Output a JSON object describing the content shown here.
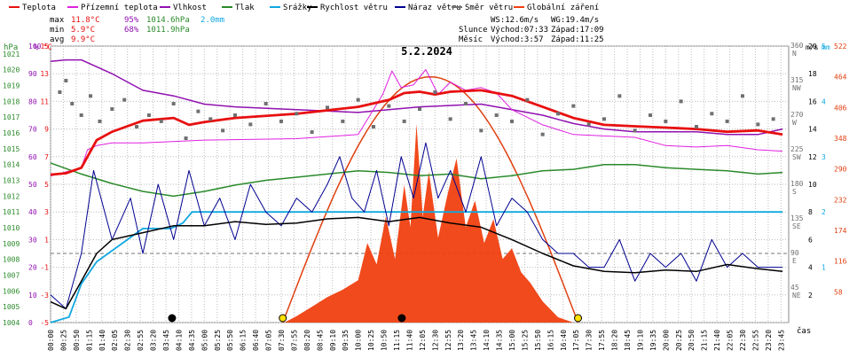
{
  "chart_data": {
    "type": "line",
    "title": "5.2.2024",
    "legend": [
      {
        "label": "Teplota",
        "color": "#e81010"
      },
      {
        "label": "Přízemní teplota",
        "color": "#e020e0"
      },
      {
        "label": "Vlhkost",
        "color": "#9010b0"
      },
      {
        "label": "Tlak",
        "color": "#2a8a2a"
      },
      {
        "label": "Srážky",
        "color": "#10a8e0"
      },
      {
        "label": "Rychlost větru",
        "color": "#000000"
      },
      {
        "label": "Náraz větru",
        "color": "#000090"
      },
      {
        "label": "Směr větru",
        "color": "#707070"
      },
      {
        "label": "Globální záření",
        "color": "#f04010"
      }
    ],
    "stats": [
      {
        "label": "max",
        "temp": "11.8°C",
        "hum": "95%",
        "press": "1014.6hPa",
        "rain": "2.0mm"
      },
      {
        "label": "min",
        "temp": "5.9°C",
        "hum": "68%",
        "press": "1011.9hPa",
        "rain": ""
      },
      {
        "label": "avg",
        "temp": "9.9°C",
        "hum": "",
        "press": "",
        "rain": ""
      }
    ],
    "info": {
      "ws": "WS:12.6m/s",
      "wg": "WG:19.4m/s",
      "sun_label": "Slunce",
      "sun_rise": "Východ:07:33",
      "sun_set": "Západ:17:09",
      "moon_label": "Měsíc",
      "moon_rise": "Východ:3:57",
      "moon_set": "Západ:11:25"
    },
    "x_axis_label": "čas",
    "x_ticks": [
      "00:00",
      "00:25",
      "00:50",
      "01:15",
      "01:40",
      "02:05",
      "02:30",
      "02:55",
      "03:20",
      "03:45",
      "04:10",
      "04:35",
      "05:00",
      "05:25",
      "05:50",
      "06:15",
      "06:40",
      "07:05",
      "07:30",
      "07:55",
      "08:20",
      "08:45",
      "09:10",
      "09:35",
      "10:00",
      "10:25",
      "10:50",
      "11:15",
      "11:40",
      "12:05",
      "12:30",
      "12:55",
      "13:20",
      "13:45",
      "14:10",
      "14:35",
      "15:00",
      "15:25",
      "15:50",
      "16:15",
      "16:40",
      "17:05",
      "17:30",
      "17:55",
      "18:20",
      "18:45",
      "19:10",
      "19:35",
      "20:00",
      "20:25",
      "20:50",
      "21:15",
      "21:40",
      "22:05",
      "22:30",
      "22:55",
      "23:20",
      "23:45"
    ],
    "axes": {
      "pressure": {
        "unit": "hPa",
        "labels": [
          "1021",
          "1020",
          "1019",
          "1018",
          "1017",
          "1016",
          "1015",
          "1014",
          "1013",
          "1012",
          "1011",
          "1010",
          "1009",
          "1008",
          "1007",
          "1006",
          "1005",
          "1004"
        ]
      },
      "humidity": {
        "unit": "%",
        "labels": [
          "100",
          "90",
          "80",
          "70",
          "60",
          "50",
          "40",
          "30",
          "20",
          "10",
          "0"
        ]
      },
      "temperature": {
        "unit": "°C",
        "labels": [
          "15",
          "13",
          "11",
          "9",
          "7",
          "5",
          "3",
          "1",
          "-1",
          "-3",
          "-5"
        ]
      },
      "direction": {
        "unit": "°",
        "labels": [
          "360",
          "315",
          "270",
          "225",
          "180",
          "135",
          "90",
          "45"
        ],
        "names": [
          "N",
          "NW",
          "W",
          "SW",
          "S",
          "SE",
          "E",
          "NE"
        ]
      },
      "wind": {
        "unit": "m/s",
        "labels": [
          "20",
          "18",
          "16",
          "14",
          "12",
          "10",
          "8",
          "6",
          "4",
          "2"
        ]
      },
      "rain": {
        "unit": "mm",
        "labels": [
          "5",
          "4",
          "3",
          "2",
          "1"
        ]
      },
      "radiation": {
        "labels": [
          "522",
          "464",
          "406",
          "348",
          "290",
          "232",
          "174",
          "116",
          "58"
        ]
      }
    },
    "series": [
      {
        "name": "Teplota",
        "unit": "°C",
        "x": [
          0,
          0.5,
          1,
          1.5,
          2,
          3,
          4,
          4.5,
          5,
          6,
          8,
          10,
          11,
          11.5,
          12,
          12.5,
          13,
          14,
          15,
          16,
          17,
          18,
          19,
          20,
          21,
          22,
          23,
          23.8
        ],
        "y": [
          5.7,
          5.8,
          6.2,
          8.2,
          8.8,
          9.6,
          9.8,
          9.3,
          9.5,
          9.8,
          10.1,
          10.6,
          11.1,
          11.6,
          11.7,
          11.5,
          11.7,
          11.8,
          11.4,
          10.6,
          9.8,
          9.3,
          9.2,
          9.1,
          9.0,
          8.8,
          8.9,
          8.6
        ]
      },
      {
        "name": "Přízemní teplota",
        "unit": "°C",
        "x": [
          0,
          1,
          1.2,
          1.5,
          2,
          3,
          5,
          8,
          10,
          10.8,
          11.1,
          11.4,
          11.8,
          12.2,
          12.6,
          13,
          13.5,
          14,
          14.5,
          15,
          16,
          17,
          18,
          19,
          20,
          21,
          22,
          23,
          23.8
        ],
        "y": [
          5.6,
          6.2,
          7.5,
          7.8,
          8.0,
          8.0,
          8.2,
          8.3,
          8.6,
          11.5,
          13.2,
          12.0,
          12.2,
          13.3,
          11.5,
          12.4,
          11.8,
          12.0,
          11.6,
          10.4,
          9.3,
          8.6,
          8.5,
          8.4,
          7.8,
          7.7,
          7.8,
          7.5,
          7.4
        ]
      },
      {
        "name": "Vlhkost",
        "unit": "%",
        "x": [
          0,
          0.5,
          1,
          2,
          3,
          4,
          5,
          6,
          8,
          10,
          12,
          14,
          15,
          16,
          17,
          18,
          19,
          20,
          21,
          22,
          23,
          23.8
        ],
        "y": [
          94.5,
          95,
          95,
          90,
          84,
          82,
          79,
          78,
          77,
          76,
          78,
          79,
          77,
          75,
          72,
          70,
          69,
          69,
          69,
          68,
          68,
          70
        ]
      },
      {
        "name": "Tlak",
        "unit": "hPa",
        "x": [
          0,
          1,
          2,
          3,
          4,
          5,
          6,
          7,
          8,
          9,
          10,
          11,
          12,
          13,
          14,
          15,
          16,
          17,
          18,
          19,
          20,
          21,
          22,
          23,
          23.8
        ],
        "y": [
          1014.1,
          1013.4,
          1012.8,
          1012.3,
          1012.0,
          1012.3,
          1012.7,
          1013.0,
          1013.2,
          1013.4,
          1013.6,
          1013.5,
          1013.3,
          1013.4,
          1013.1,
          1013.3,
          1013.6,
          1013.7,
          1014.0,
          1014.0,
          1013.8,
          1013.7,
          1013.6,
          1013.4,
          1013.5
        ]
      },
      {
        "name": "Srážky",
        "unit": "mm",
        "x": [
          0,
          0.6,
          1.0,
          1.5,
          2.0,
          2.5,
          3.0,
          3.5,
          3.9,
          4.3,
          4.6,
          23.8
        ],
        "y": [
          0,
          0.1,
          0.7,
          1.1,
          1.3,
          1.5,
          1.7,
          1.7,
          1.7,
          1.8,
          2.0,
          2.0
        ]
      },
      {
        "name": "Rychlost větru",
        "unit": "m/s",
        "x": [
          0,
          0.5,
          1,
          1.5,
          2,
          3,
          4,
          5,
          6,
          7,
          8,
          9,
          10,
          11,
          12,
          13,
          14,
          15,
          16,
          17,
          18,
          19,
          20,
          21,
          22,
          23,
          23.8
        ],
        "y": [
          1.5,
          1.0,
          3.0,
          5.0,
          6.0,
          6.5,
          7.0,
          7.0,
          7.3,
          7.1,
          7.2,
          7.5,
          7.6,
          7.3,
          7.6,
          7.2,
          6.9,
          6.0,
          5.0,
          4.1,
          3.7,
          3.6,
          3.8,
          3.7,
          4.2,
          3.9,
          3.7
        ]
      },
      {
        "name": "Náraz větru",
        "unit": "m/s",
        "x": [
          0,
          0.5,
          1,
          1.4,
          2,
          2.6,
          3,
          3.5,
          4,
          4.5,
          5,
          5.5,
          6,
          6.5,
          7,
          7.5,
          8,
          8.5,
          9,
          9.4,
          9.8,
          10.2,
          10.6,
          11,
          11.4,
          11.8,
          12.2,
          12.6,
          13,
          13.5,
          14,
          14.5,
          15,
          15.5,
          16,
          16.5,
          17,
          17.5,
          18,
          18.5,
          19,
          19.5,
          20,
          20.5,
          21,
          21.5,
          22,
          22.5,
          23,
          23.8
        ],
        "y": [
          2,
          1,
          5,
          11,
          6,
          9,
          5,
          10,
          6,
          11,
          7,
          9,
          6,
          10,
          8,
          7,
          9,
          8,
          10,
          12,
          9,
          8,
          11,
          7,
          12,
          9,
          13,
          9,
          11,
          8,
          12,
          7,
          9,
          8,
          6,
          5,
          5,
          4,
          4,
          6,
          3,
          5,
          4,
          5,
          3,
          6,
          4,
          5,
          4,
          4
        ]
      },
      {
        "name": "Směr větru",
        "unit": "°",
        "x": [
          0.3,
          0.5,
          0.7,
          1.0,
          1.3,
          1.6,
          2.0,
          2.4,
          2.8,
          3.2,
          3.6,
          4.0,
          4.4,
          4.8,
          5.2,
          5.6,
          6.0,
          6.5,
          7.0,
          7.5,
          8.0,
          8.5,
          9.0,
          9.5,
          10.0,
          10.5,
          11.0,
          11.5,
          12.0,
          12.5,
          13.0,
          13.5,
          14.0,
          14.5,
          15.0,
          15.5,
          16.0,
          16.5,
          17.0,
          17.5,
          18.0,
          18.5,
          19.0,
          19.5,
          20.0,
          20.5,
          21.0,
          21.5,
          22.0,
          22.5,
          23.0,
          23.5
        ],
        "y": [
          300,
          315,
          285,
          270,
          295,
          262,
          278,
          290,
          255,
          270,
          262,
          285,
          240,
          275,
          265,
          250,
          270,
          258,
          285,
          262,
          272,
          248,
          280,
          262,
          290,
          255,
          282,
          262,
          278,
          300,
          265,
          285,
          250,
          270,
          262,
          290,
          245,
          272,
          282,
          258,
          265,
          295,
          250,
          270,
          262,
          288,
          255,
          272,
          262,
          295,
          258,
          265
        ]
      },
      {
        "name": "Globální záření",
        "x": [
          7.6,
          8.0,
          8.5,
          9.0,
          9.5,
          10.0,
          10.3,
          10.6,
          10.9,
          11.2,
          11.5,
          11.7,
          11.9,
          12.1,
          12.3,
          12.6,
          12.9,
          13.2,
          13.5,
          13.8,
          14.1,
          14.4,
          14.7,
          15.0,
          15.3,
          15.6,
          16.0,
          16.5,
          17.0
        ],
        "y": [
          0,
          12,
          30,
          48,
          62,
          80,
          150,
          110,
          200,
          120,
          260,
          180,
          375,
          200,
          285,
          160,
          240,
          310,
          180,
          230,
          150,
          195,
          120,
          140,
          95,
          75,
          40,
          10,
          0
        ]
      }
    ],
    "markers": [
      {
        "type": "sunrise",
        "x": 7.55,
        "color": "#ffe000"
      },
      {
        "type": "sunset",
        "x": 17.15,
        "color": "#ffe000"
      },
      {
        "type": "moonrise",
        "x": 3.95,
        "color": "#000000"
      },
      {
        "type": "moonset",
        "x": 11.42,
        "color": "#000000"
      }
    ]
  }
}
